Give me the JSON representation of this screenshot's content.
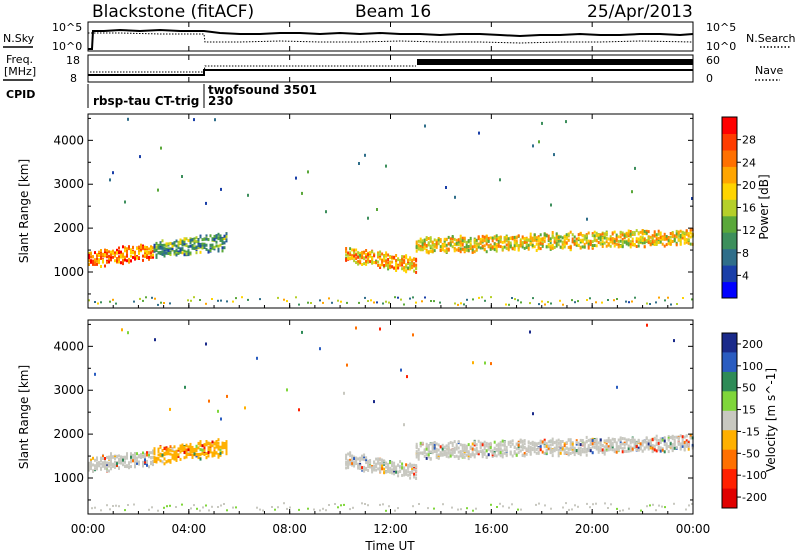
{
  "header": {
    "station": "Blackstone (fitACF)",
    "beam": "Beam 16",
    "date": "25/Apr/2013"
  },
  "noise_panel": {
    "left_label": "N.Sky",
    "right_label": "N.Search",
    "left_ticks": [
      "10^5",
      "10^0"
    ],
    "right_ticks": [
      "10^5",
      "10^0"
    ]
  },
  "freq_panel": {
    "left_label_line1": "Freq.",
    "left_label_line2": "[MHz]",
    "right_label": "Nave",
    "left_ticks": [
      "18",
      "8"
    ],
    "right_ticks": [
      "60",
      "0"
    ]
  },
  "cpid_panel": {
    "label": "CPID",
    "segments": [
      {
        "name": "rbsp-tau CT-trig",
        "id": ""
      },
      {
        "name": "twofsound 3501",
        "id": "230"
      }
    ]
  },
  "time_axis": {
    "label": "Time UT",
    "ticks": [
      "00:00",
      "04:00",
      "08:00",
      "12:00",
      "16:00",
      "20:00",
      "00:00"
    ]
  },
  "chart_data": [
    {
      "type": "heatmap",
      "title": "",
      "xlabel": "Time UT",
      "ylabel": "Slant Range [km]",
      "xlim": [
        0,
        24
      ],
      "ylim": [
        180,
        4600
      ],
      "yticks": [
        1000,
        2000,
        3000,
        4000
      ],
      "colorbar": {
        "label": "Power [dB]",
        "ticks": [
          "4",
          "8",
          "12",
          "16",
          "20",
          "24",
          "28"
        ],
        "colors": [
          "#0000ff",
          "#1a3fa8",
          "#2f6e8a",
          "#3d8f5c",
          "#5aa83a",
          "#b5cf2a",
          "#ffd400",
          "#ffa500",
          "#ff7000",
          "#ff3c00",
          "#ff0000"
        ]
      },
      "echo_bands": [
        {
          "t_start": 0.0,
          "t_end": 2.6,
          "range_start": 1300,
          "range_end": 1450,
          "power": 26
        },
        {
          "t_start": 2.6,
          "t_end": 5.5,
          "range_start": 1500,
          "range_end": 1700,
          "power": 12
        },
        {
          "t_start": 10.2,
          "t_end": 13.0,
          "range_start": 1400,
          "range_end": 1150,
          "power": 22
        },
        {
          "t_start": 13.0,
          "t_end": 24.0,
          "range_start": 1600,
          "range_end": 1800,
          "power": 20
        }
      ]
    },
    {
      "type": "heatmap",
      "title": "",
      "xlabel": "Time UT",
      "ylabel": "Slant Range [km]",
      "xlim": [
        0,
        24
      ],
      "ylim": [
        180,
        4600
      ],
      "yticks": [
        1000,
        2000,
        3000,
        4000
      ],
      "colorbar": {
        "label": "Velocity [m s^-1]",
        "ticks": [
          "200",
          "100",
          "50",
          "15",
          "-15",
          "-50",
          "-100",
          "-200"
        ],
        "colors": [
          "#1a2a8a",
          "#2a5cc0",
          "#2e8b57",
          "#7fd63a",
          "#c8c8c0",
          "#ffb000",
          "#ff7000",
          "#ff2000",
          "#e00000"
        ]
      },
      "echo_bands": [
        {
          "t_start": 0.0,
          "t_end": 2.6,
          "range_start": 1300,
          "range_end": 1450,
          "velocity": 0
        },
        {
          "t_start": 2.6,
          "t_end": 5.5,
          "range_start": 1500,
          "range_end": 1700,
          "velocity": -60
        },
        {
          "t_start": 10.2,
          "t_end": 13.0,
          "range_start": 1400,
          "range_end": 1150,
          "velocity": 0
        },
        {
          "t_start": 13.0,
          "t_end": 24.0,
          "range_start": 1600,
          "range_end": 1800,
          "velocity": 0
        }
      ]
    }
  ]
}
